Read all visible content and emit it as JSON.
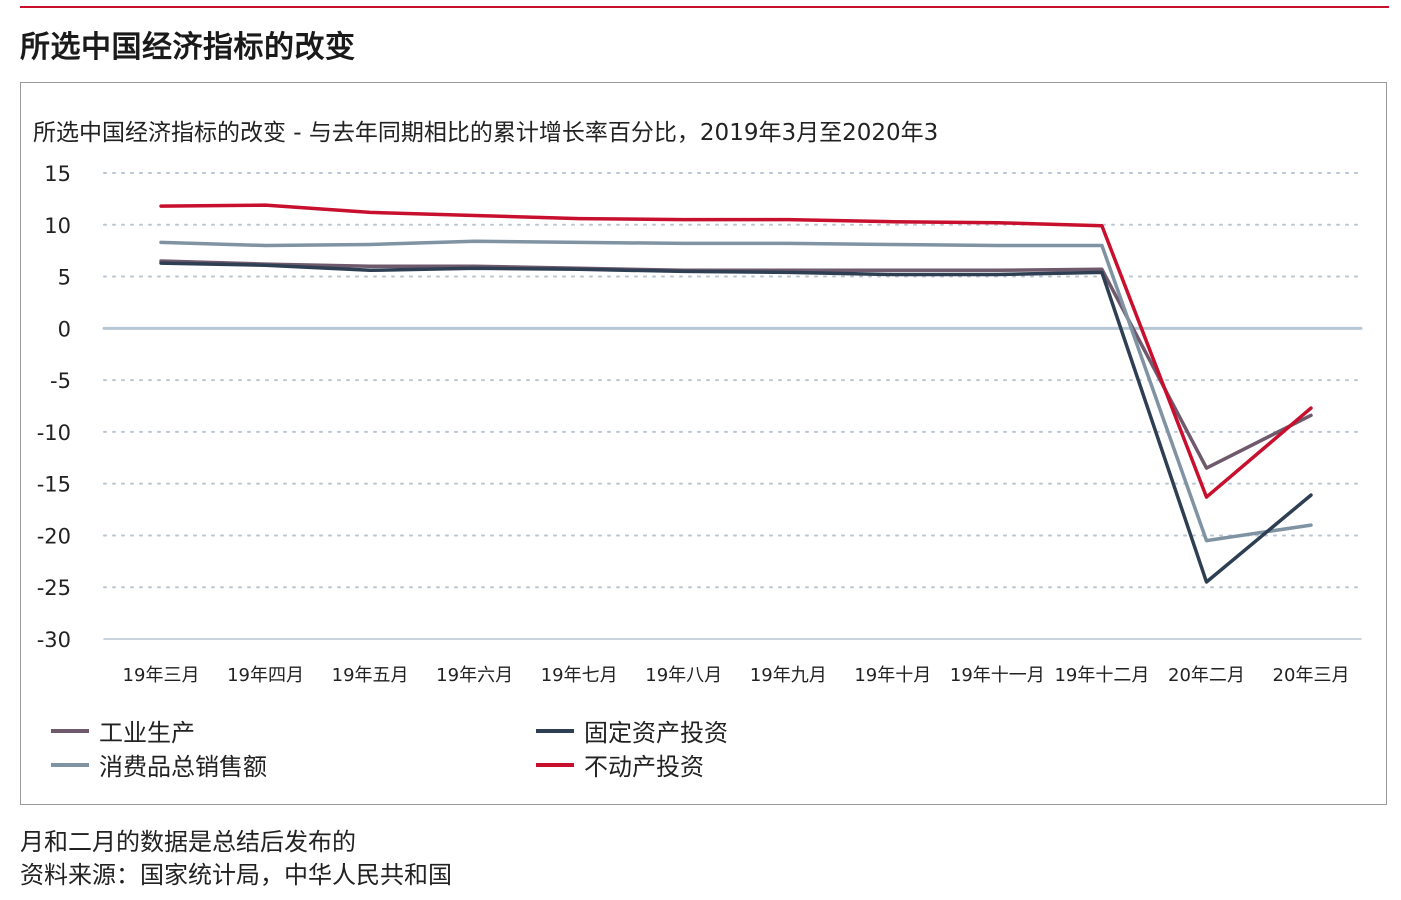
{
  "page_title": "所选中国经济指标的改变",
  "footer": {
    "note": "月和二月的数据是总结后发布的",
    "source": "资料来源：国家统计局，中华人民共和国"
  },
  "chart_data": {
    "type": "line",
    "title": "所选中国经济指标的改变 - 与去年同期相比的累计增长率百分比，2019年3月至2020年3",
    "categories": [
      "19年三月",
      "19年四月",
      "19年五月",
      "19年六月",
      "19年七月",
      "19年八月",
      "19年九月",
      "19年十月",
      "19年十一月",
      "19年十二月",
      "20年二月",
      "20年三月"
    ],
    "yticks": [
      15,
      10,
      5,
      0,
      -5,
      -10,
      -15,
      -20,
      -25,
      -30
    ],
    "ylim": [
      -30,
      15
    ],
    "grid": true,
    "legend_position": "bottom",
    "series": [
      {
        "name": "工业生产",
        "color": "#6e5a6c",
        "values": [
          6.5,
          6.2,
          6.0,
          6.0,
          5.8,
          5.6,
          5.6,
          5.6,
          5.6,
          5.7,
          -13.5,
          -8.4
        ]
      },
      {
        "name": "消费品总销售额",
        "color": "#7f93a3",
        "values": [
          8.3,
          8.0,
          8.1,
          8.4,
          8.3,
          8.2,
          8.2,
          8.1,
          8.0,
          8.0,
          -20.5,
          -19.0
        ]
      },
      {
        "name": "固定资产投资",
        "color": "#2e3f54",
        "values": [
          6.3,
          6.1,
          5.6,
          5.8,
          5.7,
          5.5,
          5.4,
          5.2,
          5.2,
          5.4,
          -24.5,
          -16.1
        ]
      },
      {
        "name": "不动产投资",
        "color": "#c8102e",
        "values": [
          11.8,
          11.9,
          11.2,
          10.9,
          10.6,
          10.5,
          10.5,
          10.3,
          10.2,
          9.9,
          -16.3,
          -7.7
        ]
      }
    ]
  }
}
